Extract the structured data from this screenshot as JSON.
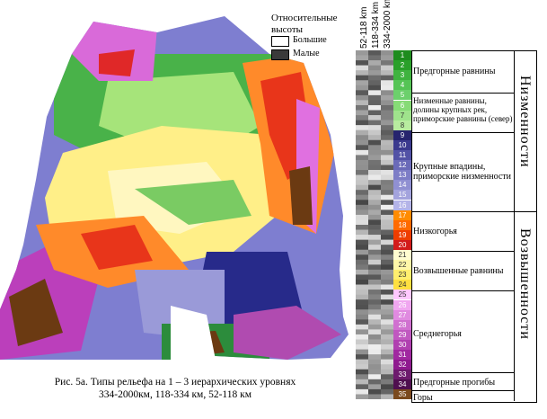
{
  "legend": {
    "title_line1": "Относительные",
    "title_line2": "высоты",
    "items": [
      {
        "label": "Большие",
        "color": "#ffffff"
      },
      {
        "label": "Малые",
        "color": "#3a3a3a"
      }
    ]
  },
  "columns": [
    "52-118 km",
    "118-334 km",
    "334-2000 km"
  ],
  "type_colors": [
    "#1e8c1e",
    "#2aa02a",
    "#3fb33f",
    "#55c455",
    "#6cd06c",
    "#86db76",
    "#9fe38c",
    "#b8ec9f",
    "#26246e",
    "#3b3a8e",
    "#5252a6",
    "#6a6ab8",
    "#7d7dc6",
    "#9090d2",
    "#a3a3dd",
    "#b4b4e8",
    "#ff8c00",
    "#ff6a00",
    "#ee3d00",
    "#d21a1a",
    "#fffcd0",
    "#fff7a8",
    "#ffef6e",
    "#ffe040",
    "#ffc8ff",
    "#f0a6f0",
    "#e08ae0",
    "#d070d0",
    "#c058c0",
    "#b040b0",
    "#a028a0",
    "#8f1a8f",
    "#6d1a6d",
    "#4f0f4f",
    "#7a4a1e"
  ],
  "groups": [
    {
      "label": "Предгорные равнины"
    },
    {
      "label": "Низменные равнины, долины крупных рек, приморские равнины (север)"
    },
    {
      "label": "Крупные впадины, приморские низменности"
    },
    {
      "label": "Низкогорья"
    },
    {
      "label": "Возвышенные равнины"
    },
    {
      "label": "Среднегорья"
    },
    {
      "label": "Предгорные прогибы"
    },
    {
      "label": "Горы"
    }
  ],
  "classes": [
    {
      "label": "Низменности"
    },
    {
      "label": "Возвышенности"
    }
  ],
  "caption": {
    "line1": "Рис. 5а. Типы рельефа на 1 – 3 иерархических уровнях",
    "line2": "334-2000км, 118-334 км, 52-118 км"
  }
}
